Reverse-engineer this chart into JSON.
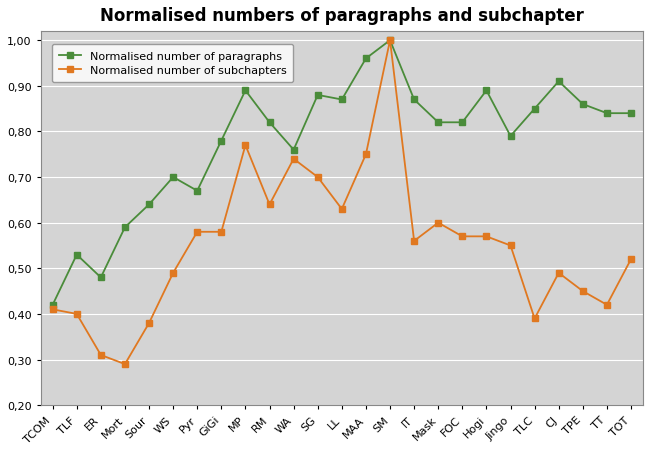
{
  "title": "Normalised numbers of paragraphs and subchapter",
  "categories": [
    "TCOM",
    "TLF",
    "ER",
    "Mort",
    "Sour",
    "WS",
    "Pyr",
    "GiGi",
    "MP",
    "RM",
    "WA",
    "SG",
    "LL",
    "MAA",
    "SM",
    "IT",
    "Mask",
    "FOC",
    "Hogi",
    "Jingo",
    "TLC",
    "CJ",
    "TPE",
    "TT",
    "TOT"
  ],
  "paragraphs": [
    0.42,
    0.53,
    0.48,
    0.59,
    0.64,
    0.7,
    0.67,
    0.78,
    0.89,
    0.82,
    0.76,
    0.88,
    0.87,
    0.96,
    1.0,
    0.87,
    0.82,
    0.82,
    0.89,
    0.79,
    0.85,
    0.91,
    0.86,
    0.84,
    0.84
  ],
  "subchapters": [
    0.41,
    0.4,
    0.31,
    0.29,
    0.38,
    0.49,
    0.58,
    0.58,
    0.77,
    0.64,
    0.74,
    0.7,
    0.63,
    0.75,
    1.0,
    0.56,
    0.6,
    0.57,
    0.57,
    0.55,
    0.39,
    0.49,
    0.45,
    0.42,
    0.52
  ],
  "para_color": "#4a8c3a",
  "sub_color": "#e07820",
  "legend_para": "Normalised number of paragraphs",
  "legend_sub": "Normalised number of subchapters",
  "ylim": [
    0.2,
    1.02
  ],
  "yticks": [
    0.2,
    0.3,
    0.4,
    0.5,
    0.6,
    0.7,
    0.8,
    0.9,
    1.0
  ],
  "fig_bg_color": "#ffffff",
  "plot_bg_color": "#d4d4d4",
  "grid_color": "#ffffff",
  "title_fontsize": 12,
  "tick_fontsize": 8,
  "legend_fontsize": 8
}
